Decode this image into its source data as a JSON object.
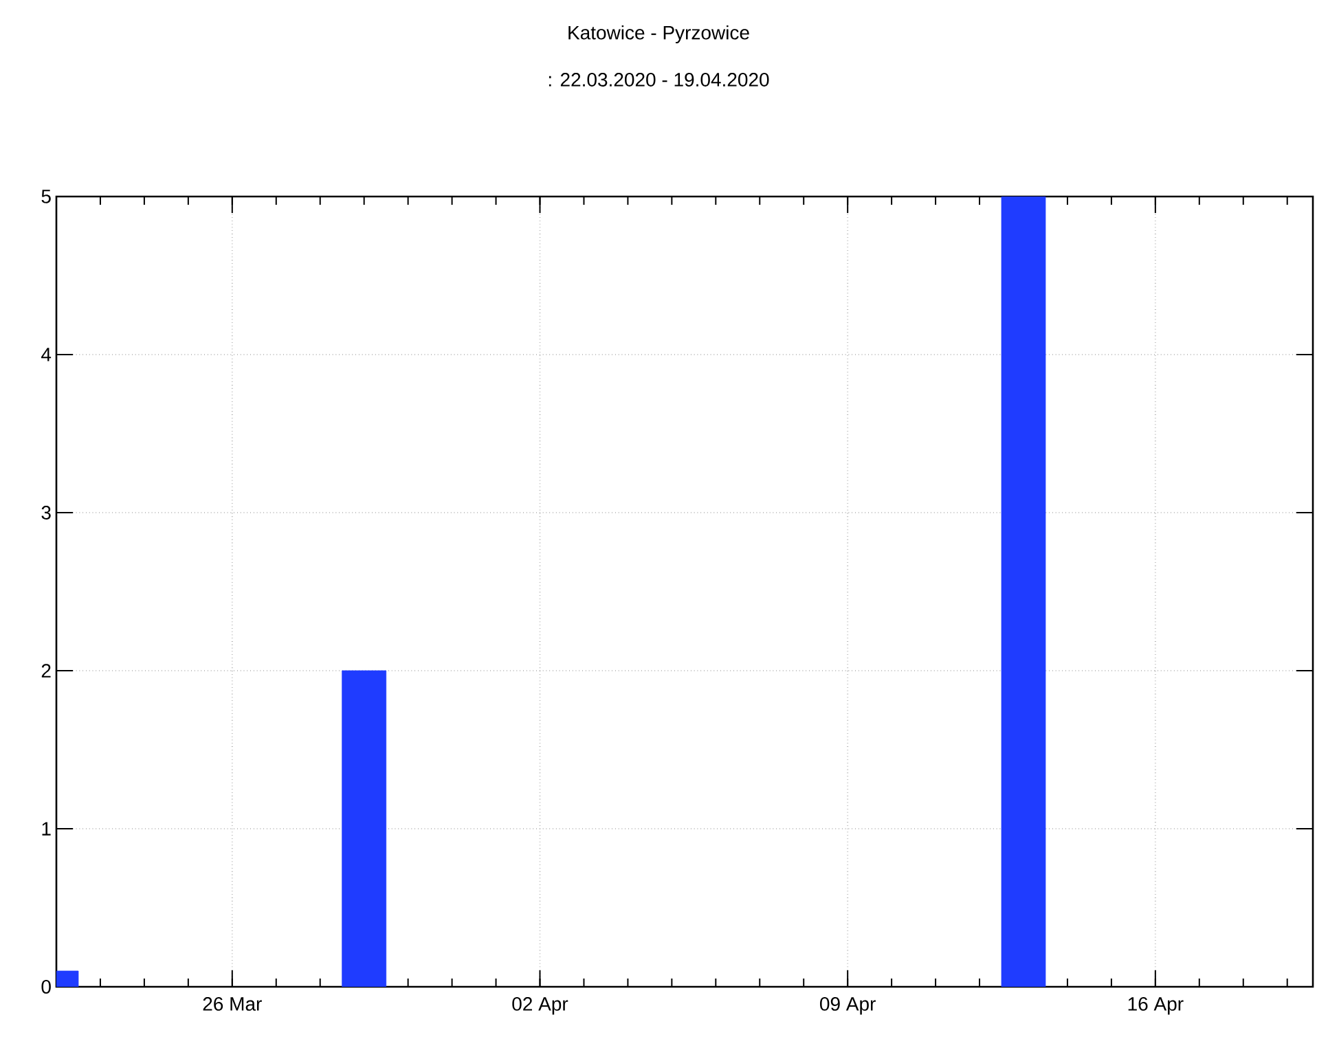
{
  "chart_data": {
    "type": "bar",
    "title": "Katowice - Pyrzowice",
    "subtitle": ": 22.03.2020 - 19.04.2020",
    "x": [
      "2020-03-22",
      "2020-03-29",
      "2020-04-13"
    ],
    "values": [
      0.1,
      2,
      5
    ],
    "color": "#1f3cff",
    "xlim": [
      "2020-03-22",
      "2020-04-19T14:00"
    ],
    "xticks": [
      {
        "value": "2020-03-26",
        "label": "26 Mar"
      },
      {
        "value": "2020-04-02",
        "label": "02 Apr"
      },
      {
        "value": "2020-04-09",
        "label": "09 Apr"
      },
      {
        "value": "2020-04-16",
        "label": "16 Apr"
      }
    ],
    "ylim": [
      0,
      5
    ],
    "yticks": [
      0,
      1,
      2,
      3,
      4,
      5
    ],
    "grid": true
  }
}
